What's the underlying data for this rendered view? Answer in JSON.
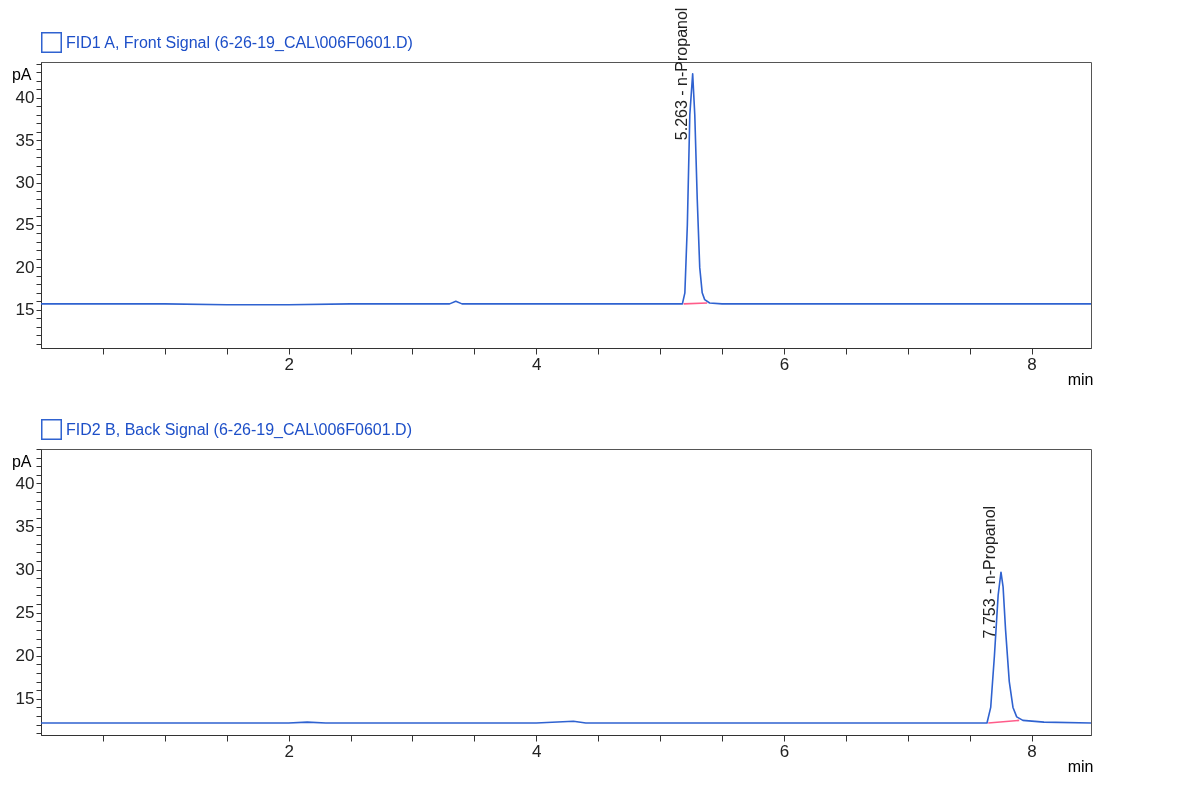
{
  "chart_data": [
    {
      "type": "line",
      "xlabel": "min",
      "ylabel": "pA",
      "legend": "top left",
      "xlim": [
        0,
        8.48
      ],
      "ylim": [
        10.5,
        44.2
      ],
      "xticks": [
        {
          "value": 0.5,
          "label": null
        },
        {
          "value": 1,
          "label": null
        },
        {
          "value": 1.5,
          "label": null
        },
        2,
        {
          "value": 2.5,
          "label": null
        },
        {
          "value": 3,
          "label": null
        },
        {
          "value": 3.5,
          "label": null
        },
        4,
        {
          "value": 4.5,
          "label": null
        },
        {
          "value": 5,
          "label": null
        },
        {
          "value": 5.5,
          "label": null
        },
        6,
        {
          "value": 6.5,
          "label": null
        },
        {
          "value": 7,
          "label": null
        },
        {
          "value": 7.5,
          "label": null
        },
        8
      ],
      "yticks": [
        {
          "value": 11,
          "label": null
        },
        {
          "value": 12,
          "label": null
        },
        {
          "value": 13,
          "label": null
        },
        {
          "value": 14,
          "label": null
        },
        15,
        {
          "value": 16,
          "label": null
        },
        {
          "value": 17,
          "label": null
        },
        {
          "value": 18,
          "label": null
        },
        {
          "value": 19,
          "label": null
        },
        20,
        {
          "value": 21,
          "label": null
        },
        {
          "value": 22,
          "label": null
        },
        {
          "value": 23,
          "label": null
        },
        {
          "value": 24,
          "label": null
        },
        25,
        {
          "value": 26,
          "label": null
        },
        {
          "value": 27,
          "label": null
        },
        {
          "value": 28,
          "label": null
        },
        {
          "value": 29,
          "label": null
        },
        30,
        {
          "value": 31,
          "label": null
        },
        {
          "value": 32,
          "label": null
        },
        {
          "value": 33,
          "label": null
        },
        {
          "value": 34,
          "label": null
        },
        35,
        {
          "value": 36,
          "label": null
        },
        {
          "value": 37,
          "label": null
        },
        {
          "value": 38,
          "label": null
        },
        {
          "value": 39,
          "label": null
        },
        40,
        {
          "value": 41,
          "label": null
        },
        {
          "value": 42,
          "label": null
        },
        {
          "value": 43,
          "label": null
        },
        {
          "value": 44,
          "label": null
        }
      ],
      "series": [
        {
          "name": "FID1 A, Front Signal (6-26-19_CAL\\006F0601.D)",
          "color": "#2f62d0",
          "x": [
            0,
            0.5,
            1,
            1.5,
            2,
            2.5,
            3,
            3.3,
            3.35,
            3.4,
            4,
            4.5,
            5,
            5.18,
            5.2,
            5.22,
            5.24,
            5.263,
            5.28,
            5.3,
            5.32,
            5.34,
            5.36,
            5.4,
            5.5,
            6,
            6.5,
            7,
            7.5,
            8,
            8.48
          ],
          "values": [
            15.7,
            15.7,
            15.7,
            15.6,
            15.6,
            15.7,
            15.7,
            15.7,
            16,
            15.7,
            15.7,
            15.7,
            15.7,
            15.7,
            17,
            25,
            38,
            42.8,
            38,
            28,
            20,
            17,
            16.2,
            15.8,
            15.7,
            15.7,
            15.7,
            15.7,
            15.7,
            15.7,
            15.7
          ]
        },
        {
          "color": "#ff5c8a",
          "x": [
            5.19,
            5.38
          ],
          "values": [
            15.7,
            15.8
          ]
        }
      ],
      "annotations": [
        {
          "text": "5.263 -  n-Propanol",
          "x": 5.263,
          "y": 42.8
        }
      ]
    },
    {
      "type": "line",
      "xlabel": "min",
      "ylabel": "pA",
      "legend": "top left",
      "xlim": [
        0,
        8.48
      ],
      "ylim": [
        10.8,
        44
      ],
      "xticks": [
        {
          "value": 0.5,
          "label": null
        },
        {
          "value": 1,
          "label": null
        },
        {
          "value": 1.5,
          "label": null
        },
        2,
        {
          "value": 2.5,
          "label": null
        },
        {
          "value": 3,
          "label": null
        },
        {
          "value": 3.5,
          "label": null
        },
        4,
        {
          "value": 4.5,
          "label": null
        },
        {
          "value": 5,
          "label": null
        },
        {
          "value": 5.5,
          "label": null
        },
        6,
        {
          "value": 6.5,
          "label": null
        },
        {
          "value": 7,
          "label": null
        },
        {
          "value": 7.5,
          "label": null
        },
        8
      ],
      "yticks": [
        {
          "value": 11,
          "label": null
        },
        {
          "value": 12,
          "label": null
        },
        {
          "value": 13,
          "label": null
        },
        {
          "value": 14,
          "label": null
        },
        15,
        {
          "value": 16,
          "label": null
        },
        {
          "value": 17,
          "label": null
        },
        {
          "value": 18,
          "label": null
        },
        {
          "value": 19,
          "label": null
        },
        20,
        {
          "value": 21,
          "label": null
        },
        {
          "value": 22,
          "label": null
        },
        {
          "value": 23,
          "label": null
        },
        {
          "value": 24,
          "label": null
        },
        25,
        {
          "value": 26,
          "label": null
        },
        {
          "value": 27,
          "label": null
        },
        {
          "value": 28,
          "label": null
        },
        {
          "value": 29,
          "label": null
        },
        30,
        {
          "value": 31,
          "label": null
        },
        {
          "value": 32,
          "label": null
        },
        {
          "value": 33,
          "label": null
        },
        {
          "value": 34,
          "label": null
        },
        35,
        {
          "value": 36,
          "label": null
        },
        {
          "value": 37,
          "label": null
        },
        {
          "value": 38,
          "label": null
        },
        {
          "value": 39,
          "label": null
        },
        40,
        {
          "value": 41,
          "label": null
        },
        {
          "value": 42,
          "label": null
        },
        {
          "value": 43,
          "label": null
        },
        {
          "value": 44,
          "label": null
        }
      ],
      "series": [
        {
          "name": "FID2 B, Back Signal (6-26-19_CAL\\006F0601.D)",
          "color": "#2f62d0",
          "x": [
            0,
            0.5,
            1,
            1.5,
            2,
            2.15,
            2.3,
            3,
            3.5,
            4,
            4.3,
            4.4,
            5,
            6,
            7,
            7.5,
            7.64,
            7.67,
            7.7,
            7.73,
            7.753,
            7.77,
            7.79,
            7.82,
            7.85,
            7.88,
            7.93,
            8.1,
            8.48
          ],
          "values": [
            12.2,
            12.2,
            12.2,
            12.2,
            12.2,
            12.3,
            12.2,
            12.2,
            12.2,
            12.2,
            12.4,
            12.2,
            12.2,
            12.2,
            12.2,
            12.2,
            12.2,
            14,
            20,
            27,
            29.7,
            28,
            23,
            17,
            14,
            12.9,
            12.5,
            12.3,
            12.2
          ]
        },
        {
          "color": "#ff5c8a",
          "x": [
            7.65,
            7.9
          ],
          "values": [
            12.2,
            12.5
          ]
        }
      ],
      "annotations": [
        {
          "text": "7.753 -  n-Propanol",
          "x": 7.753,
          "y": 29.7
        }
      ]
    }
  ]
}
